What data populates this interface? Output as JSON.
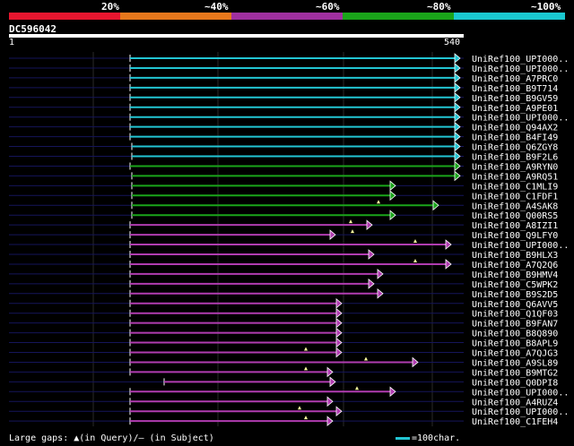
{
  "header": {
    "segments": [
      {
        "label": "20%",
        "color": "#e8162f"
      },
      {
        "label": "~40%",
        "color": "#e8781c"
      },
      {
        "label": "~60%",
        "color": "#a030a0"
      },
      {
        "label": "~80%",
        "color": "#1aa51a"
      },
      {
        "label": "~100%",
        "color": "#1ac8d0"
      }
    ],
    "query_id": "DC596042",
    "ruler_start": "1",
    "ruler_end": "540"
  },
  "colors": {
    "cyan": "#22c5d3",
    "green": "#1aa51a",
    "purple": "#b03cb0",
    "grid": "#2a2a2a",
    "query_line": "#15155a",
    "gap_marker": "#ffffa0"
  },
  "hits": [
    {
      "label": "UniRef100_UPI000..",
      "color": "cyan",
      "start": 145,
      "end": 513,
      "gaps": []
    },
    {
      "label": "UniRef100_UPI000..",
      "color": "cyan",
      "start": 145,
      "end": 513,
      "gaps": []
    },
    {
      "label": "UniRef100_A7PRC0",
      "color": "cyan",
      "start": 145,
      "end": 513,
      "gaps": []
    },
    {
      "label": "UniRef100_B9T714",
      "color": "cyan",
      "start": 145,
      "end": 513,
      "gaps": []
    },
    {
      "label": "UniRef100_B9GV59",
      "color": "cyan",
      "start": 145,
      "end": 513,
      "gaps": []
    },
    {
      "label": "UniRef100_A9PE01",
      "color": "cyan",
      "start": 145,
      "end": 513,
      "gaps": []
    },
    {
      "label": "UniRef100_UPI000..",
      "color": "cyan",
      "start": 145,
      "end": 513,
      "gaps": []
    },
    {
      "label": "UniRef100_Q94AX2",
      "color": "cyan",
      "start": 145,
      "end": 513,
      "gaps": []
    },
    {
      "label": "UniRef100_B4FI49",
      "color": "cyan",
      "start": 145,
      "end": 513,
      "gaps": []
    },
    {
      "label": "UniRef100_Q6ZGY8",
      "color": "cyan",
      "start": 147,
      "end": 513,
      "gaps": []
    },
    {
      "label": "UniRef100_B9F2L6",
      "color": "cyan",
      "start": 147,
      "end": 513,
      "gaps": []
    },
    {
      "label": "UniRef100_A9RYN0",
      "color": "green",
      "start": 145,
      "end": 513,
      "gaps": []
    },
    {
      "label": "UniRef100_A9RQ51",
      "color": "green",
      "start": 147,
      "end": 513,
      "gaps": []
    },
    {
      "label": "UniRef100_C1MLI9",
      "color": "green",
      "start": 147,
      "end": 441,
      "gaps": []
    },
    {
      "label": "UniRef100_C1FDF1",
      "color": "green",
      "start": 147,
      "end": 441,
      "gaps": []
    },
    {
      "label": "UniRef100_A4SAK8",
      "color": "green",
      "start": 147,
      "end": 489,
      "gaps": [
        422
      ]
    },
    {
      "label": "UniRef100_Q00RS5",
      "color": "green",
      "start": 147,
      "end": 441,
      "gaps": []
    },
    {
      "label": "UniRef100_A8IZI1",
      "color": "purple",
      "start": 145,
      "end": 415,
      "gaps": [
        391
      ]
    },
    {
      "label": "UniRef100_Q9LFY0",
      "color": "purple",
      "start": 145,
      "end": 374,
      "gaps": [
        393
      ]
    },
    {
      "label": "UniRef100_UPI000..",
      "color": "purple",
      "start": 145,
      "end": 503,
      "gaps": [
        463
      ]
    },
    {
      "label": "UniRef100_B9HLX3",
      "color": "purple",
      "start": 145,
      "end": 417,
      "gaps": []
    },
    {
      "label": "UniRef100_A7Q2Q6",
      "color": "purple",
      "start": 145,
      "end": 503,
      "gaps": [
        463
      ]
    },
    {
      "label": "UniRef100_B9HMV4",
      "color": "purple",
      "start": 145,
      "end": 427,
      "gaps": []
    },
    {
      "label": "UniRef100_C5WPK2",
      "color": "purple",
      "start": 145,
      "end": 417,
      "gaps": []
    },
    {
      "label": "UniRef100_B9S2D5",
      "color": "purple",
      "start": 145,
      "end": 427,
      "gaps": []
    },
    {
      "label": "UniRef100_Q6AVV5",
      "color": "purple",
      "start": 145,
      "end": 381,
      "gaps": []
    },
    {
      "label": "UniRef100_Q1QF03",
      "color": "purple",
      "start": 145,
      "end": 381,
      "gaps": []
    },
    {
      "label": "UniRef100_B9FAN7",
      "color": "purple",
      "start": 145,
      "end": 381,
      "gaps": []
    },
    {
      "label": "UniRef100_B8Q890",
      "color": "purple",
      "start": 145,
      "end": 381,
      "gaps": []
    },
    {
      "label": "UniRef100_B8APL9",
      "color": "purple",
      "start": 145,
      "end": 381,
      "gaps": []
    },
    {
      "label": "UniRef100_A7QJG3",
      "color": "purple",
      "start": 145,
      "end": 381,
      "gaps": [
        341
      ]
    },
    {
      "label": "UniRef100_A9SL89",
      "color": "purple",
      "start": 145,
      "end": 466,
      "gaps": [
        408
      ]
    },
    {
      "label": "UniRef100_B9MTG2",
      "color": "purple",
      "start": 145,
      "end": 371,
      "gaps": [
        341
      ]
    },
    {
      "label": "UniRef100_Q0DPI8",
      "color": "purple",
      "start": 183,
      "end": 374,
      "gaps": []
    },
    {
      "label": "UniRef100_UPI000..",
      "color": "purple",
      "start": 145,
      "end": 441,
      "gaps": [
        398
      ]
    },
    {
      "label": "UniRef100_A4RUZ4",
      "color": "purple",
      "start": 145,
      "end": 371,
      "gaps": []
    },
    {
      "label": "UniRef100_UPI000..",
      "color": "purple",
      "start": 145,
      "end": 381,
      "gaps": [
        334
      ]
    },
    {
      "label": "UniRef100_C1FEH4",
      "color": "purple",
      "start": 145,
      "end": 371,
      "gaps": [
        341
      ]
    }
  ],
  "footer": {
    "legend": "Large gaps: ▲(in Query)/– (in Subject)",
    "scale": "=100char."
  }
}
